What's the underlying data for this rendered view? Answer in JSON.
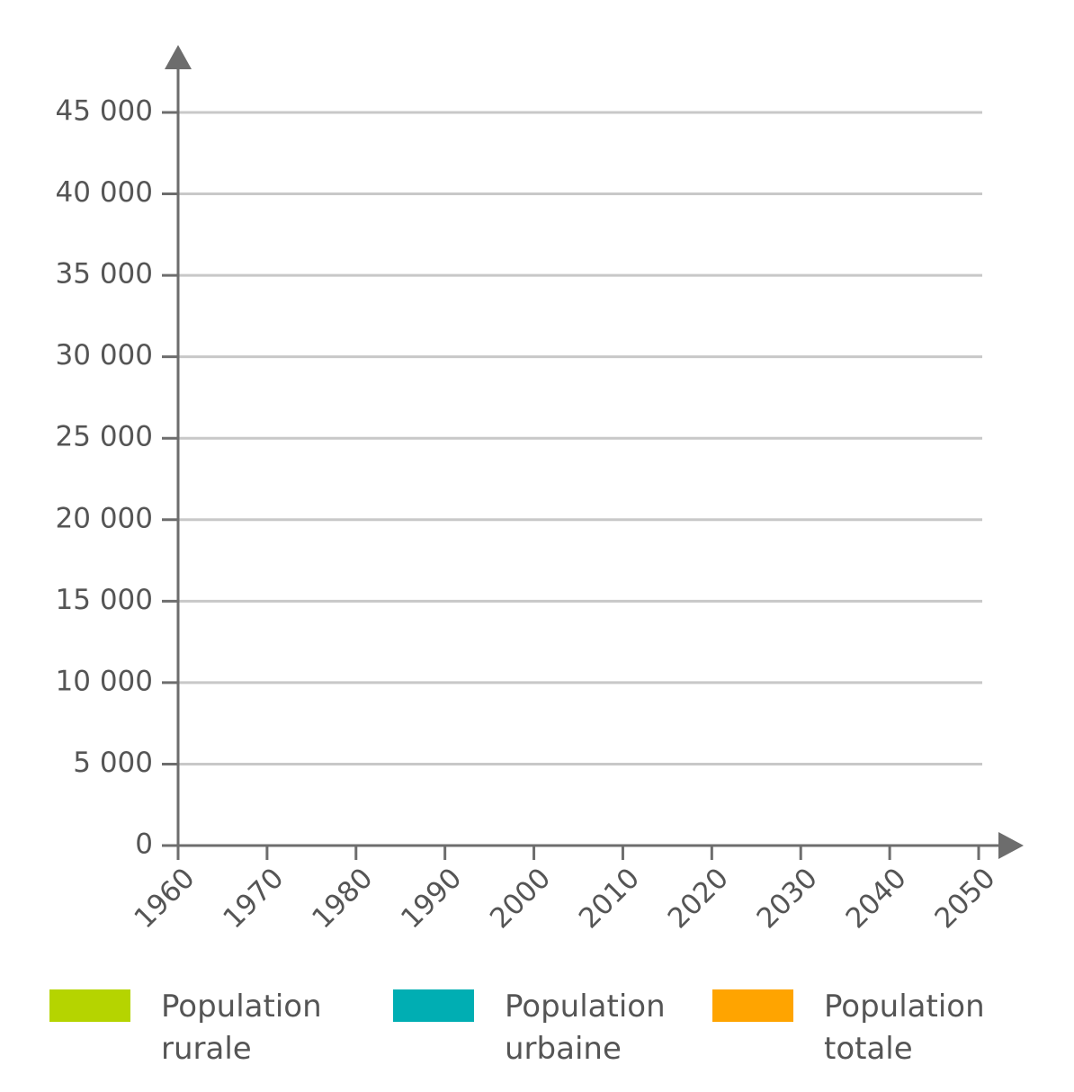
{
  "chart_data": {
    "type": "line",
    "xlim": [
      1960,
      2050
    ],
    "xticks": [
      1960,
      1970,
      1980,
      1990,
      2000,
      2010,
      2020,
      2030,
      2040,
      2050
    ],
    "ylim": [
      0,
      45000
    ],
    "yticks": [
      0,
      {
        "value": 5000,
        "label": "5 000"
      },
      {
        "value": 10000,
        "label": "10 000"
      },
      {
        "value": 15000,
        "label": "15 000"
      },
      {
        "value": 20000,
        "label": "20 000"
      },
      {
        "value": 25000,
        "label": "25 000"
      },
      {
        "value": 30000,
        "label": "30 000"
      },
      {
        "value": 35000,
        "label": "35 000"
      },
      {
        "value": 40000,
        "label": "40 000"
      },
      {
        "value": 45000,
        "label": "45 000"
      }
    ],
    "grid": true,
    "series": [
      {
        "name": "Population rurale",
        "color": "#b5d400"
      },
      {
        "name": "Population urbaine",
        "color": "#00aeb3"
      },
      {
        "name": "Population totale",
        "color": "#ffa400"
      }
    ]
  }
}
